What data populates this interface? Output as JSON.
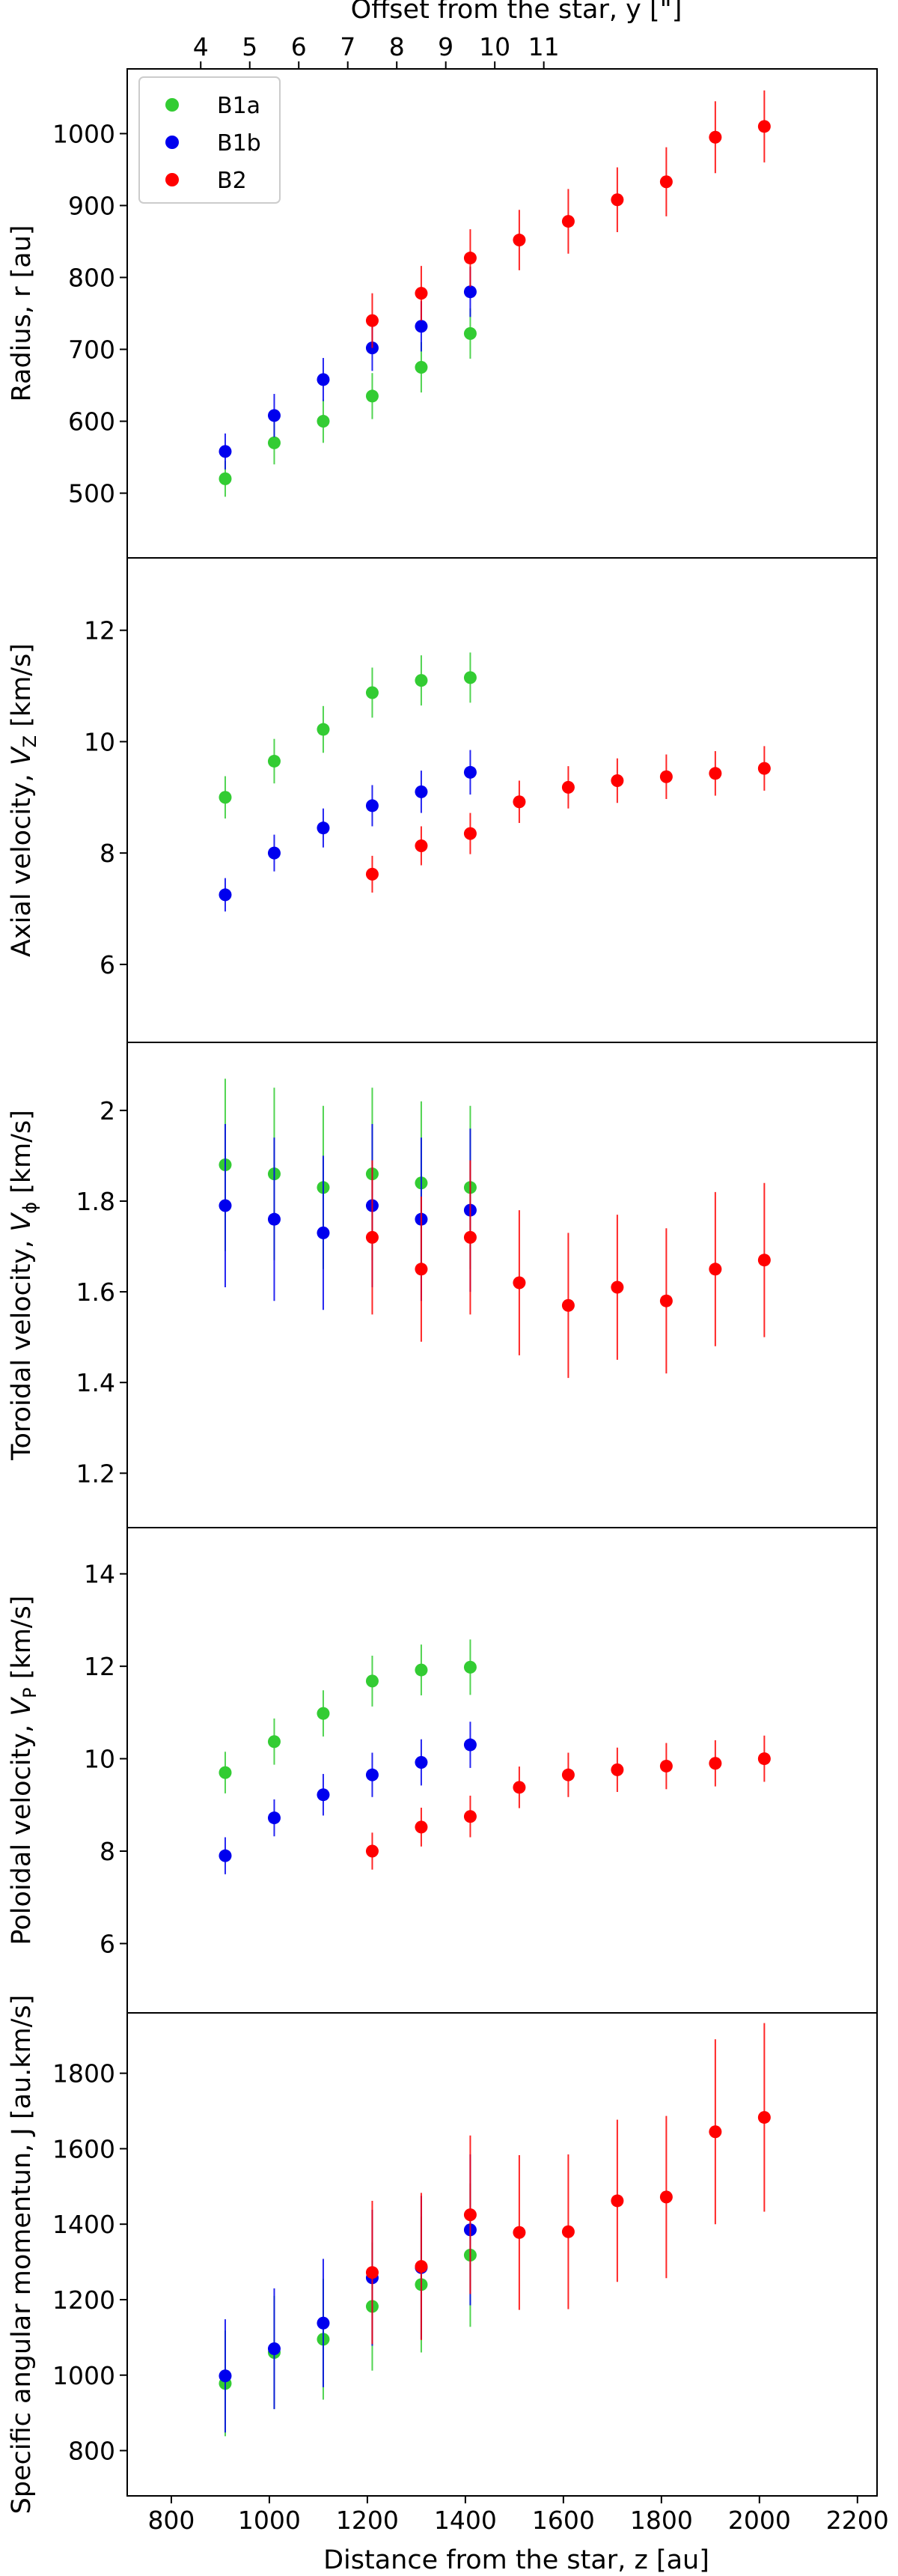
{
  "figure": {
    "top_axis_label": "Offset from the star, y [\"]",
    "top_ticks": [
      4,
      5,
      6,
      7,
      8,
      9,
      10,
      11
    ],
    "bottom_axis_label": "Distance from the star, z [au]",
    "bottom_ticks": [
      800,
      1000,
      1200,
      1400,
      1600,
      1800,
      2000,
      2200
    ],
    "xlim": [
      710,
      2240
    ],
    "legend_position": "top-left",
    "legend": [
      {
        "name": "B1a",
        "color": "#33cc33"
      },
      {
        "name": "B1b",
        "color": "#0000ee"
      },
      {
        "name": "B2",
        "color": "#ff0000"
      }
    ]
  },
  "chart_data": [
    {
      "type": "scatter",
      "ylabel": "Radius, r [au]",
      "ylim": [
        410,
        1090
      ],
      "yticks": [
        500,
        600,
        700,
        800,
        900,
        1000
      ],
      "series": [
        {
          "name": "B1a",
          "color": "#33cc33",
          "x": [
            910,
            1010,
            1110,
            1210,
            1310,
            1410
          ],
          "y": [
            520,
            570,
            600,
            635,
            675,
            722
          ],
          "err": [
            25,
            30,
            30,
            32,
            35,
            35
          ]
        },
        {
          "name": "B1b",
          "color": "#0000ee",
          "x": [
            910,
            1010,
            1110,
            1210,
            1310,
            1410
          ],
          "y": [
            558,
            608,
            658,
            702,
            732,
            780
          ],
          "err": [
            25,
            30,
            30,
            32,
            35,
            35
          ]
        },
        {
          "name": "B2",
          "color": "#ff0000",
          "x": [
            1210,
            1310,
            1410,
            1510,
            1610,
            1710,
            1810,
            1910,
            2010
          ],
          "y": [
            740,
            778,
            827,
            852,
            878,
            908,
            933,
            995,
            1010
          ],
          "err": [
            38,
            38,
            40,
            42,
            45,
            45,
            48,
            50,
            50
          ]
        }
      ]
    },
    {
      "type": "scatter",
      "ylabel": "Axial velocity, V_Z [km/s]",
      "ylim": [
        4.6,
        13.3
      ],
      "yticks": [
        6,
        8,
        10,
        12
      ],
      "series": [
        {
          "name": "B1a",
          "color": "#33cc33",
          "x": [
            910,
            1010,
            1110,
            1210,
            1310,
            1410
          ],
          "y": [
            9.0,
            9.65,
            10.22,
            10.88,
            11.1,
            11.15
          ],
          "err": [
            0.38,
            0.4,
            0.42,
            0.45,
            0.45,
            0.45
          ]
        },
        {
          "name": "B1b",
          "color": "#0000ee",
          "x": [
            910,
            1010,
            1110,
            1210,
            1310,
            1410
          ],
          "y": [
            7.25,
            8.0,
            8.45,
            8.85,
            9.1,
            9.45
          ],
          "err": [
            0.3,
            0.33,
            0.35,
            0.37,
            0.38,
            0.4
          ]
        },
        {
          "name": "B2",
          "color": "#ff0000",
          "x": [
            1210,
            1310,
            1410,
            1510,
            1610,
            1710,
            1810,
            1910,
            2010
          ],
          "y": [
            7.62,
            8.13,
            8.35,
            8.92,
            9.18,
            9.3,
            9.37,
            9.43,
            9.52
          ],
          "err": [
            0.33,
            0.35,
            0.37,
            0.38,
            0.38,
            0.4,
            0.4,
            0.4,
            0.4
          ]
        }
      ]
    },
    {
      "type": "scatter",
      "ylabel": "Toroidal velocity, V_ϕ [km/s]",
      "ylim": [
        1.08,
        2.15
      ],
      "yticks": [
        1.2,
        1.4,
        1.6,
        1.8,
        2.0
      ],
      "series": [
        {
          "name": "B1a",
          "color": "#33cc33",
          "x": [
            910,
            1010,
            1110,
            1210,
            1310,
            1410
          ],
          "y": [
            1.88,
            1.86,
            1.83,
            1.86,
            1.84,
            1.83
          ],
          "err": [
            0.19,
            0.19,
            0.18,
            0.19,
            0.18,
            0.18
          ]
        },
        {
          "name": "B1b",
          "color": "#0000ee",
          "x": [
            910,
            1010,
            1110,
            1210,
            1310,
            1410
          ],
          "y": [
            1.79,
            1.76,
            1.73,
            1.79,
            1.76,
            1.78
          ],
          "err": [
            0.18,
            0.18,
            0.17,
            0.18,
            0.18,
            0.18
          ]
        },
        {
          "name": "B2",
          "color": "#ff0000",
          "x": [
            1210,
            1310,
            1410,
            1510,
            1610,
            1710,
            1810,
            1910,
            2010
          ],
          "y": [
            1.72,
            1.65,
            1.72,
            1.62,
            1.57,
            1.61,
            1.58,
            1.65,
            1.67
          ],
          "err": [
            0.17,
            0.16,
            0.17,
            0.16,
            0.16,
            0.16,
            0.16,
            0.17,
            0.17
          ]
        }
      ]
    },
    {
      "type": "scatter",
      "ylabel": "Poloidal velocity, V_P [km/s]",
      "ylim": [
        4.5,
        15.0
      ],
      "yticks": [
        6,
        8,
        10,
        12,
        14
      ],
      "series": [
        {
          "name": "B1a",
          "color": "#33cc33",
          "x": [
            910,
            1010,
            1110,
            1210,
            1310,
            1410
          ],
          "y": [
            9.7,
            10.37,
            10.98,
            11.68,
            11.92,
            11.98
          ],
          "err": [
            0.45,
            0.5,
            0.5,
            0.55,
            0.55,
            0.6
          ]
        },
        {
          "name": "B1b",
          "color": "#0000ee",
          "x": [
            910,
            1010,
            1110,
            1210,
            1310,
            1410
          ],
          "y": [
            7.9,
            8.72,
            9.22,
            9.65,
            9.92,
            10.3
          ],
          "err": [
            0.4,
            0.4,
            0.45,
            0.48,
            0.5,
            0.5
          ]
        },
        {
          "name": "B2",
          "color": "#ff0000",
          "x": [
            1210,
            1310,
            1410,
            1510,
            1610,
            1710,
            1810,
            1910,
            2010
          ],
          "y": [
            8.0,
            8.52,
            8.75,
            9.38,
            9.65,
            9.76,
            9.84,
            9.9,
            10.0
          ],
          "err": [
            0.4,
            0.42,
            0.45,
            0.45,
            0.48,
            0.48,
            0.5,
            0.5,
            0.5
          ]
        }
      ]
    },
    {
      "type": "scatter",
      "ylabel": "Specific angular momentun, J [au.km/s]",
      "ylim": [
        680,
        1960
      ],
      "yticks": [
        800,
        1000,
        1200,
        1400,
        1600,
        1800
      ],
      "series": [
        {
          "name": "B1a",
          "color": "#33cc33",
          "x": [
            910,
            1010,
            1110,
            1210,
            1310,
            1410
          ],
          "y": [
            978,
            1060,
            1095,
            1182,
            1240,
            1318
          ],
          "err": [
            140,
            150,
            160,
            170,
            180,
            190
          ]
        },
        {
          "name": "B1b",
          "color": "#0000ee",
          "x": [
            910,
            1010,
            1110,
            1210,
            1310,
            1410
          ],
          "y": [
            998,
            1070,
            1138,
            1258,
            1285,
            1385
          ],
          "err": [
            150,
            160,
            170,
            180,
            190,
            200
          ]
        },
        {
          "name": "B2",
          "color": "#ff0000",
          "x": [
            1210,
            1310,
            1410,
            1510,
            1610,
            1710,
            1810,
            1910,
            2010
          ],
          "y": [
            1272,
            1288,
            1425,
            1378,
            1380,
            1462,
            1472,
            1645,
            1683
          ],
          "err": [
            190,
            195,
            210,
            205,
            205,
            215,
            215,
            245,
            250
          ]
        }
      ]
    }
  ]
}
